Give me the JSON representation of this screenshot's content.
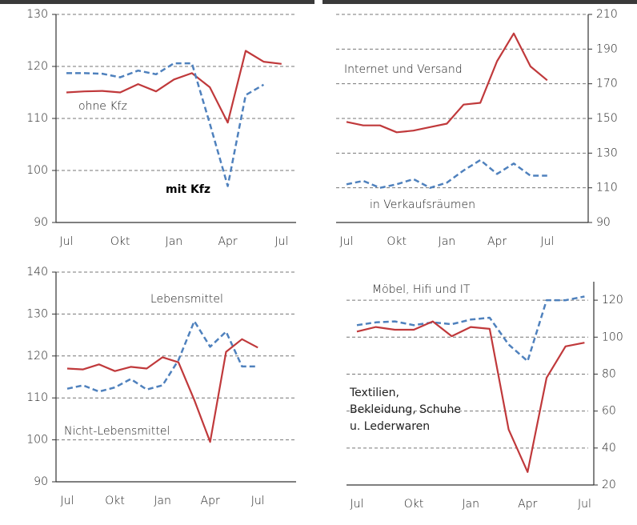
{
  "chart_data": [
    {
      "type": "line",
      "categories": [
        "Jul",
        null,
        null,
        "Okt",
        null,
        null,
        "Jan",
        null,
        null,
        "Apr",
        null,
        null,
        "Jul"
      ],
      "ylim": [
        90,
        130
      ],
      "yticks": [
        90,
        100,
        110,
        120,
        130
      ],
      "grid": true,
      "axis_side": "left",
      "series": [
        {
          "name": "ohne Kfz",
          "color": "#c0393b",
          "style": "solid",
          "values": [
            115.0,
            115.2,
            115.3,
            115.0,
            116.6,
            115.2,
            117.5,
            118.7,
            116.0,
            109.2,
            123.0,
            120.9,
            120.5
          ]
        },
        {
          "name": "mit Kfz",
          "color": "#4f81bd",
          "style": "dashed",
          "values": [
            118.7,
            118.7,
            118.6,
            117.9,
            119.2,
            118.5,
            120.6,
            120.6,
            109.0,
            97.0,
            114.5,
            116.5,
            null
          ]
        }
      ]
    },
    {
      "type": "line",
      "categories": [
        "Jul",
        null,
        null,
        "Okt",
        null,
        null,
        "Jan",
        null,
        null,
        "Apr",
        null,
        null,
        "Jul"
      ],
      "ylim": [
        90,
        210
      ],
      "yticks": [
        90,
        110,
        130,
        150,
        170,
        190,
        210
      ],
      "grid": true,
      "axis_side": "right",
      "series": [
        {
          "name": "Internet und Versand",
          "color": "#c0393b",
          "style": "solid",
          "values": [
            148,
            146,
            146,
            142,
            143,
            145,
            147,
            158,
            159,
            183,
            199,
            180,
            172
          ]
        },
        {
          "name": "in Verkaufsräumen",
          "color": "#4f81bd",
          "style": "dashed",
          "values": [
            112,
            114,
            110,
            112,
            115,
            110,
            113,
            120,
            126,
            118,
            124,
            117,
            117
          ]
        }
      ]
    },
    {
      "type": "line",
      "categories": [
        "Jul",
        null,
        null,
        "Okt",
        null,
        null,
        "Jan",
        null,
        null,
        "Apr",
        null,
        null,
        "Jul"
      ],
      "ylim": [
        90,
        140
      ],
      "yticks": [
        90,
        100,
        110,
        120,
        130,
        140
      ],
      "grid": true,
      "axis_side": "left",
      "series": [
        {
          "name": "Lebensmittel",
          "color": "#4f81bd",
          "style": "dashed",
          "values": [
            112.2,
            113.0,
            111.5,
            112.5,
            114.5,
            112.0,
            113.0,
            119.0,
            128.3,
            122.2,
            125.8,
            117.5,
            117.5
          ]
        },
        {
          "name": "Nicht-Lebensmittel",
          "color": "#c0393b",
          "style": "solid",
          "values": [
            117.0,
            116.8,
            118.0,
            116.4,
            117.4,
            117.0,
            119.7,
            118.5,
            109.5,
            99.5,
            121.0,
            124.0,
            122.0
          ]
        }
      ]
    },
    {
      "type": "line",
      "categories": [
        "Jul",
        null,
        null,
        "Okt",
        null,
        null,
        "Jan",
        null,
        null,
        "Apr",
        null,
        null,
        "Jul"
      ],
      "ylim": [
        20,
        130
      ],
      "yticks": [
        20,
        40,
        60,
        80,
        100,
        120
      ],
      "grid": true,
      "axis_side": "right",
      "series": [
        {
          "name": "Möbel, Hifi und IT",
          "color": "#4f81bd",
          "style": "dashed",
          "values": [
            106.5,
            108.0,
            108.5,
            106.5,
            108.0,
            107.0,
            109.5,
            110.5,
            96.0,
            87.0,
            120.0,
            120.0,
            122.0
          ]
        },
        {
          "name": "Textilien, Bekleidung, Schuhe u. Lederwaren",
          "color": "#c0393b",
          "style": "solid",
          "values": [
            103.0,
            105.5,
            104.0,
            104.0,
            108.5,
            100.5,
            105.5,
            104.5,
            50.0,
            27.0,
            78.0,
            95.0,
            97.0
          ]
        }
      ]
    }
  ]
}
